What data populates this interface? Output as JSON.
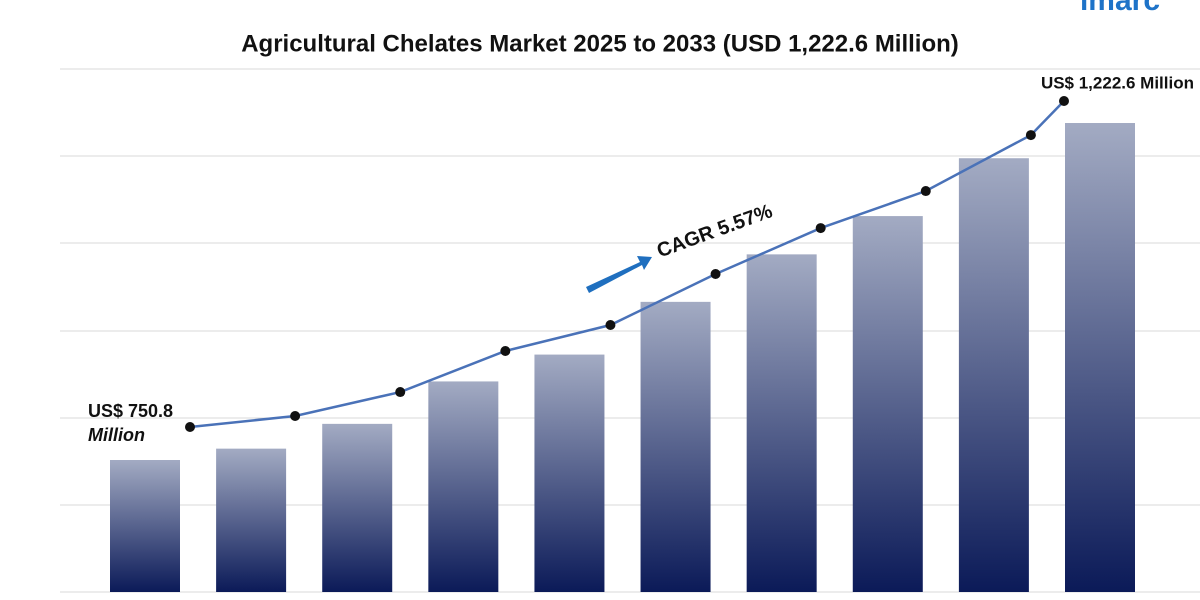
{
  "logo": "imarc",
  "chart_data": {
    "type": "bar-line",
    "title": "Agricultural Chelates Market 2025 to 2033 (USD 1,222.6 Million)",
    "annotation": "CAGR 5.57%",
    "values": [
      750.8,
      766.7,
      801.4,
      860.8,
      898.4,
      972.2,
      1038.7,
      1092.3,
      1173.3,
      1222.6
    ],
    "value_labels": [
      "US$ 750.8 Million",
      null,
      null,
      null,
      null,
      null,
      null,
      null,
      null,
      "US$ 1,222.6 Million"
    ],
    "bar_color_top": "#a3abc3",
    "bar_color_bottom": "#0b1a58",
    "line_color": "#4a72b8",
    "marker_color": "#111111"
  }
}
